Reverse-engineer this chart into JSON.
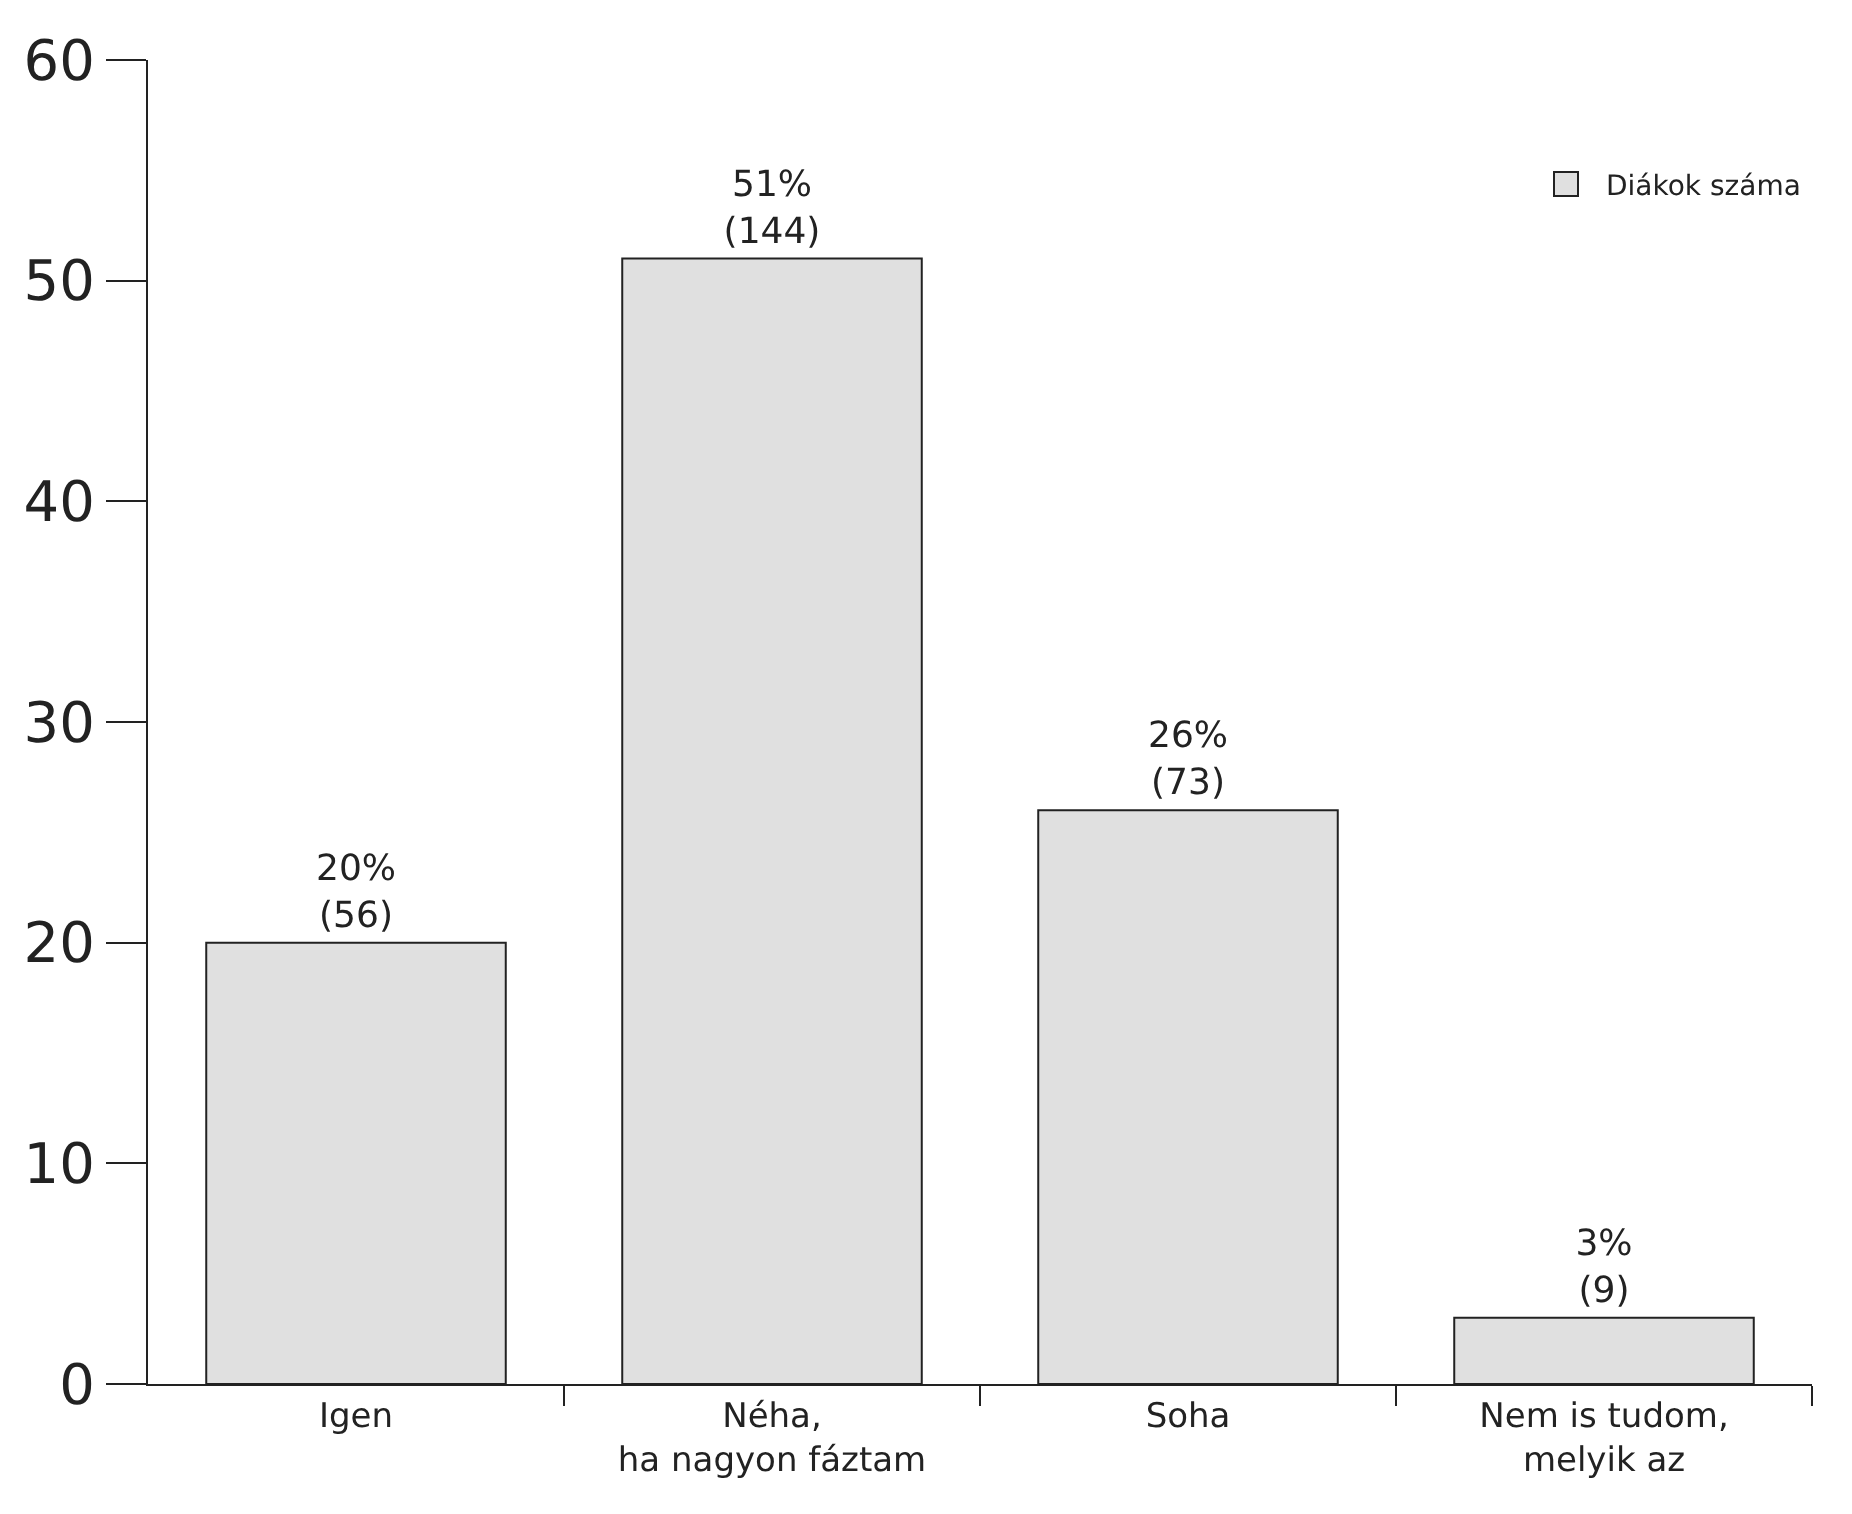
{
  "chart_data": {
    "type": "bar",
    "categories": [
      "Igen",
      "Néha,\nha nagyon fáztam",
      "Soha",
      "Nem is tudom,\nmelyik az"
    ],
    "series": [
      {
        "name": "Diákok száma",
        "color": "#e0e0e0",
        "values": [
          20,
          51,
          26,
          3
        ],
        "value_labels": [
          "20%\n(56)",
          "51%\n(144)",
          "26%\n(73)",
          "3%\n(9)"
        ]
      }
    ],
    "ylim": [
      0,
      60
    ],
    "yticks": [
      0,
      10,
      20,
      30,
      40,
      50,
      60
    ],
    "legend": "top right"
  }
}
